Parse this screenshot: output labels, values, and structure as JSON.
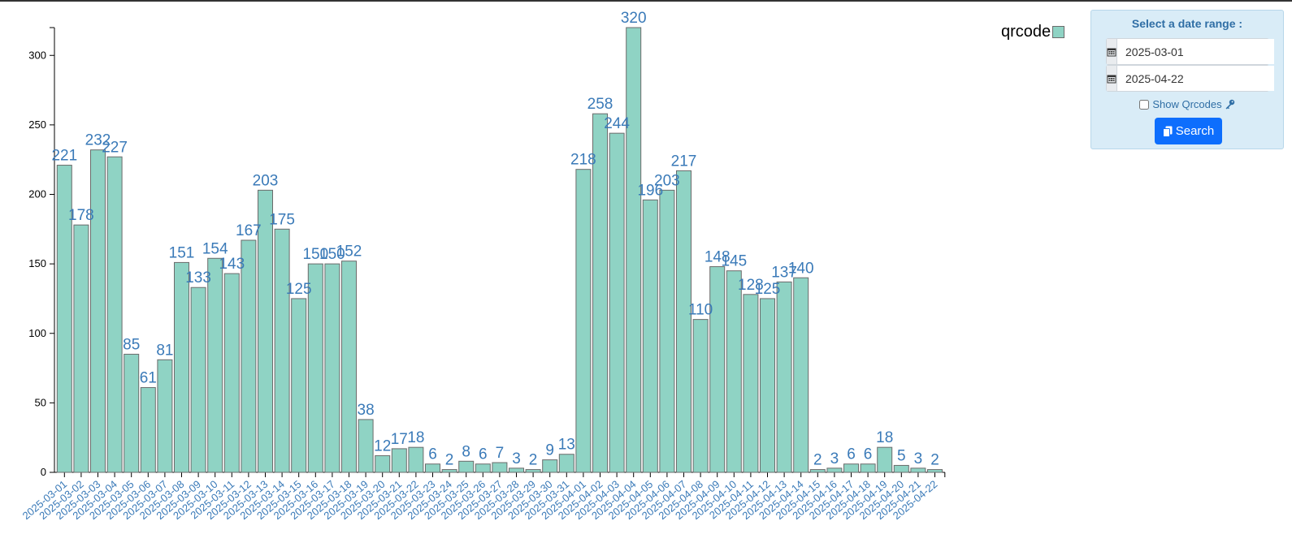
{
  "chart_data": {
    "type": "bar",
    "series": [
      {
        "name": "qrcode",
        "color": "#8fd3c4"
      }
    ],
    "categories": [
      "2025-03-01",
      "2025-03-02",
      "2025-03-03",
      "2025-03-04",
      "2025-03-05",
      "2025-03-06",
      "2025-03-07",
      "2025-03-08",
      "2025-03-09",
      "2025-03-10",
      "2025-03-11",
      "2025-03-12",
      "2025-03-13",
      "2025-03-14",
      "2025-03-15",
      "2025-03-16",
      "2025-03-17",
      "2025-03-18",
      "2025-03-19",
      "2025-03-20",
      "2025-03-21",
      "2025-03-22",
      "2025-03-23",
      "2025-03-24",
      "2025-03-25",
      "2025-03-26",
      "2025-03-27",
      "2025-03-28",
      "2025-03-29",
      "2025-03-30",
      "2025-03-31",
      "2025-04-01",
      "2025-04-02",
      "2025-04-03",
      "2025-04-04",
      "2025-04-05",
      "2025-04-06",
      "2025-04-07",
      "2025-04-08",
      "2025-04-09",
      "2025-04-10",
      "2025-04-11",
      "2025-04-12",
      "2025-04-13",
      "2025-04-14",
      "2025-04-15",
      "2025-04-16",
      "2025-04-17",
      "2025-04-18",
      "2025-04-19",
      "2025-04-20",
      "2025-04-21",
      "2025-04-22"
    ],
    "values": [
      221,
      178,
      232,
      227,
      85,
      61,
      81,
      151,
      133,
      154,
      143,
      167,
      203,
      175,
      125,
      150,
      150,
      152,
      38,
      12,
      17,
      18,
      6,
      2,
      8,
      6,
      7,
      3,
      2,
      9,
      13,
      218,
      258,
      244,
      320,
      196,
      203,
      217,
      110,
      148,
      145,
      128,
      125,
      137,
      140,
      2,
      3,
      6,
      6,
      18,
      5,
      3,
      2
    ],
    "ylim": [
      0,
      320
    ],
    "yticks": [
      0,
      50,
      100,
      150,
      200,
      250,
      300
    ],
    "legend": "top-right",
    "grid": false
  },
  "legend": {
    "label": "qrcode"
  },
  "panel": {
    "title": "Select a date range :",
    "start_date": "2025-03-01",
    "end_date": "2025-04-22",
    "checkbox_label": "Show Qrcodes",
    "search_label": "Search",
    "icons": [
      "calendar-icon",
      "key-icon",
      "copy-icon"
    ]
  }
}
